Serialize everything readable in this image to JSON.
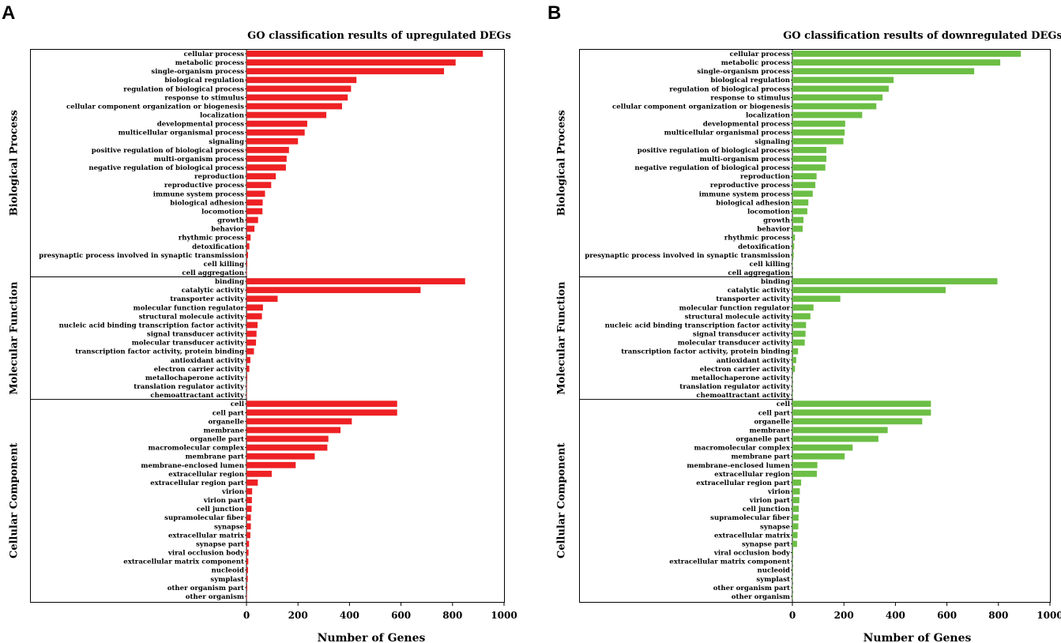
{
  "chart_data": [
    {
      "type": "bar",
      "orientation": "horizontal",
      "panel_label": "A",
      "title": "GO classification results of upregulated DEGs",
      "xlabel": "Number of Genes",
      "ylabel": "",
      "xlim": [
        0,
        1000
      ],
      "xticks": [
        "0",
        "200",
        "400",
        "600",
        "800",
        "1000"
      ],
      "color": "#ee2124",
      "groups": [
        {
          "name": "Biological Process",
          "categories": [
            "cellular process",
            "metabolic process",
            "single-organism process",
            "biological regulation",
            "regulation of biological process",
            "response to stimulus",
            "cellular component organization or biogenesis",
            "localization",
            "developmental process",
            "multicellular organismal process",
            "signaling",
            "positive regulation of biological process",
            "multi-organism process",
            "negative regulation of biological process",
            "reproduction",
            "reproductive process",
            "immune system process",
            "biological adhesion",
            "locomotion",
            "growth",
            "behavior",
            "rhythmic process",
            "detoxification",
            "presynaptic process involved in synaptic transmission",
            "cell killing",
            "cell aggregation"
          ],
          "values": [
            918,
            812,
            767,
            427,
            406,
            393,
            371,
            310,
            236,
            226,
            200,
            165,
            156,
            153,
            114,
            96,
            72,
            63,
            62,
            45,
            31,
            16,
            11,
            6,
            3,
            1
          ]
        },
        {
          "name": "Molecular Function",
          "categories": [
            "binding",
            "catalytic activity",
            "transporter activity",
            "molecular function regulator",
            "structural molecule activity",
            "nucleic acid binding transcription factor activity",
            "signal transducer activity",
            "molecular transducer activity",
            "transcription factor activity, protein binding",
            "antioxidant activity",
            "electron carrier activity",
            "metallochaperone activity",
            "translation regulator activity",
            "chemoattractant activity"
          ],
          "values": [
            849,
            676,
            121,
            64,
            60,
            43,
            39,
            37,
            29,
            15,
            11,
            3,
            2,
            1
          ]
        },
        {
          "name": "Cellular Component",
          "categories": [
            "cell",
            "cell part",
            "organelle",
            "membrane",
            "organelle part",
            "macromolecular complex",
            "membrane part",
            "membrane-enclosed lumen",
            "extracellular region",
            "extracellular region part",
            "virion",
            "virion part",
            "cell junction",
            "supramolecular fiber",
            "synapse",
            "extracellular matrix",
            "synapse part",
            "viral occlusion body",
            "extracellular matrix component",
            "nucleoid",
            "symplast",
            "other organism part",
            "other organism"
          ],
          "values": [
            585,
            585,
            409,
            365,
            318,
            314,
            265,
            191,
            98,
            44,
            22,
            21,
            20,
            17,
            17,
            15,
            10,
            8,
            7,
            6,
            5,
            3,
            2
          ]
        }
      ]
    },
    {
      "type": "bar",
      "orientation": "horizontal",
      "panel_label": "B",
      "title": "GO classification results of downregulated DEGs",
      "xlabel": "Number of Genes",
      "ylabel": "",
      "xlim": [
        0,
        1000
      ],
      "xticks": [
        "0",
        "200",
        "400",
        "600",
        "800",
        "1000"
      ],
      "color": "#6cbe45",
      "groups": [
        {
          "name": "Biological Process",
          "categories": [
            "cellular process",
            "metabolic process",
            "single-organism process",
            "biological regulation",
            "regulation of biological process",
            "response to stimulus",
            "cellular component organization or biogenesis",
            "localization",
            "developmental process",
            "multicellular organismal process",
            "signaling",
            "positive regulation of biological process",
            "multi-organism process",
            "negative regulation of biological process",
            "reproduction",
            "reproductive process",
            "immune system process",
            "biological adhesion",
            "locomotion",
            "growth",
            "behavior",
            "rhythmic process",
            "detoxification",
            "presynaptic process involved in synaptic transmission",
            "cell killing",
            "cell aggregation"
          ],
          "values": [
            887,
            807,
            706,
            393,
            374,
            350,
            326,
            271,
            205,
            203,
            198,
            132,
            132,
            128,
            94,
            89,
            79,
            62,
            58,
            43,
            40,
            10,
            7,
            5,
            2,
            1
          ]
        },
        {
          "name": "Molecular Function",
          "categories": [
            "binding",
            "catalytic activity",
            "transporter activity",
            "molecular function regulator",
            "structural molecule activity",
            "nucleic acid binding transcription factor activity",
            "signal transducer activity",
            "molecular transducer activity",
            "transcription factor activity, protein binding",
            "antioxidant activity",
            "electron carrier activity",
            "metallochaperone activity",
            "translation regulator activity",
            "chemoattractant activity"
          ],
          "values": [
            796,
            595,
            186,
            82,
            70,
            53,
            51,
            48,
            22,
            15,
            10,
            2,
            1,
            1
          ]
        },
        {
          "name": "Cellular Component",
          "categories": [
            "cell",
            "cell part",
            "organelle",
            "membrane",
            "organelle part",
            "macromolecular complex",
            "membrane part",
            "membrane-enclosed lumen",
            "extracellular region",
            "extracellular region part",
            "virion",
            "virion part",
            "cell junction",
            "supramolecular fiber",
            "synapse",
            "extracellular matrix",
            "synapse part",
            "viral occlusion body",
            "extracellular matrix component",
            "nucleoid",
            "symplast",
            "other organism part",
            "other organism"
          ],
          "values": [
            538,
            538,
            504,
            370,
            334,
            234,
            203,
            97,
            95,
            34,
            29,
            27,
            25,
            24,
            23,
            20,
            18,
            3,
            2,
            2,
            1,
            1,
            1
          ]
        }
      ]
    }
  ]
}
